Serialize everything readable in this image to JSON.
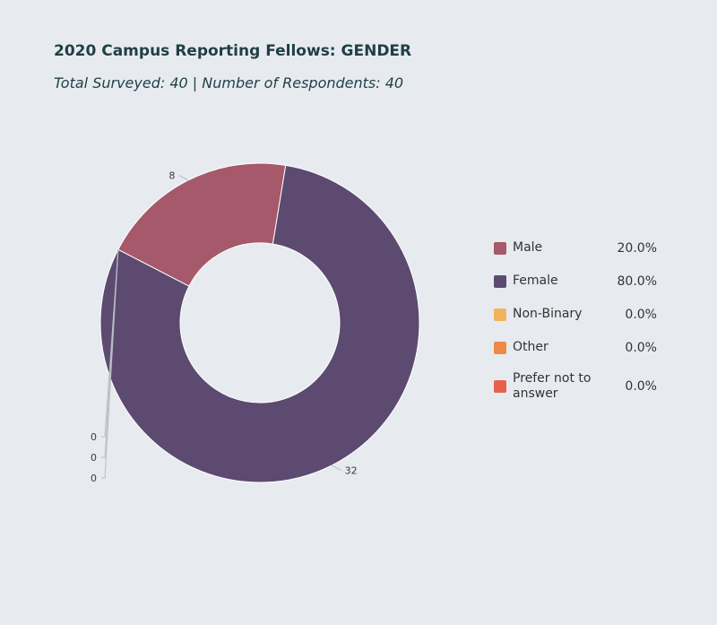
{
  "title": "2020 Campus Reporting Fellows: GENDER",
  "subtitle": "Total Surveyed: 40 | Number of Respondents: 40",
  "chart_data": {
    "type": "pie",
    "variant": "donut",
    "categories": [
      "Male",
      "Female",
      "Non-Binary",
      "Other",
      "Prefer not to answer"
    ],
    "values": [
      8,
      32,
      0,
      0,
      0
    ],
    "percentages": [
      "20.0%",
      "80.0%",
      "0.0%",
      "0.0%",
      "0.0%"
    ],
    "colors": [
      "#a5596a",
      "#5d4a70",
      "#f1b35b",
      "#ee8847",
      "#e8604e"
    ],
    "data_labels": [
      "8",
      "32",
      "0",
      "0",
      "0"
    ],
    "legend_position": "right"
  }
}
